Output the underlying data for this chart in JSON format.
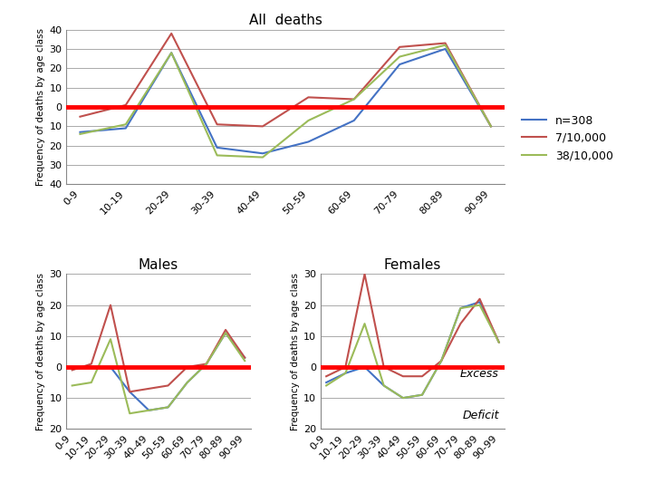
{
  "age_classes": [
    "0-9",
    "10-19",
    "20-29",
    "30-39",
    "40-49",
    "50-59",
    "60-69",
    "70-79",
    "80-89",
    "90-99"
  ],
  "all_deaths": {
    "n308": [
      13,
      11,
      -28,
      21,
      24,
      18,
      7,
      -22,
      -30,
      10
    ],
    "rate7": [
      5,
      -1,
      -38,
      9,
      10,
      -5,
      -4,
      -31,
      -33,
      10
    ],
    "rate38": [
      14,
      9,
      -28,
      25,
      26,
      7,
      -4,
      -26,
      -32,
      10
    ]
  },
  "males": {
    "n308": [
      0,
      0,
      0,
      8,
      14,
      13,
      5,
      -1,
      -11,
      -3
    ],
    "rate7": [
      1,
      -1,
      -20,
      8,
      7,
      6,
      0,
      -1,
      -12,
      -3
    ],
    "rate38": [
      6,
      5,
      -9,
      15,
      14,
      13,
      5,
      -1,
      -11,
      -2
    ]
  },
  "females": {
    "n308": [
      5,
      2,
      0,
      6,
      10,
      9,
      -2,
      -19,
      -21,
      -8
    ],
    "rate7": [
      3,
      0,
      -30,
      0,
      3,
      3,
      -2,
      -14,
      -22,
      -8
    ],
    "rate38": [
      6,
      2,
      -14,
      6,
      10,
      9,
      -2,
      -19,
      -20,
      -8
    ]
  },
  "colors": {
    "n308": "#4472C4",
    "rate7": "#C0504D",
    "rate38": "#9BBB59"
  },
  "zero_color": "#FF0000",
  "title_all": "All  deaths",
  "title_males": "Males",
  "title_females": "Females",
  "ylabel": "Frequency of deaths by age class",
  "legend_labels": [
    "n=308",
    "7/10,000",
    "38/10,000"
  ],
  "ylim_all": [
    40,
    -40
  ],
  "ylim_sub": [
    20,
    -30
  ],
  "yticks_all": [
    40,
    30,
    20,
    10,
    0,
    -10,
    -20,
    -30,
    -40
  ],
  "yticklabels_all": [
    "40",
    "30",
    "20",
    "10",
    "0",
    "10",
    "20",
    "30",
    "40"
  ],
  "yticks_sub": [
    20,
    10,
    0,
    -10,
    -20,
    -30
  ],
  "yticklabels_sub": [
    "20",
    "10",
    "0",
    "10",
    "20",
    "30"
  ]
}
